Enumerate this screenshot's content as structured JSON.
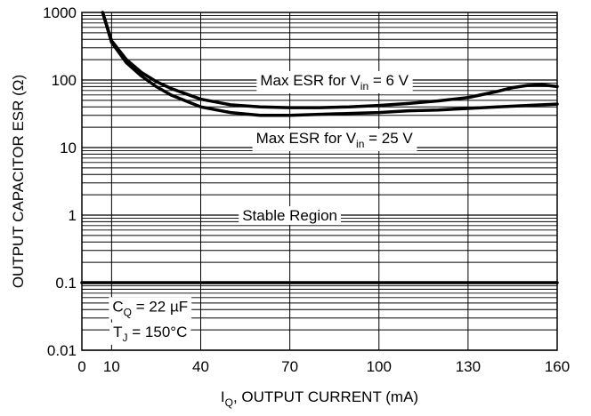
{
  "chart_data": {
    "type": "line",
    "title": "",
    "xlabel": {
      "main": "I",
      "sub": "Q",
      "rest": ", OUTPUT CURRENT (mA)"
    },
    "ylabel": "OUTPUT CAPACITOR ESR (Ω)",
    "x_scale": "linear",
    "y_scale": "log",
    "xlim": [
      0,
      160
    ],
    "ylim": [
      0.01,
      1000
    ],
    "x_ticks": [
      {
        "value": 0,
        "label": "0"
      },
      {
        "value": 10,
        "label": "10"
      },
      {
        "value": 40,
        "label": "40"
      },
      {
        "value": 70,
        "label": "70"
      },
      {
        "value": 100,
        "label": "100"
      },
      {
        "value": 130,
        "label": "130"
      },
      {
        "value": 160,
        "label": "160"
      }
    ],
    "y_ticks": [
      {
        "value": 0.01,
        "label": "0.01"
      },
      {
        "value": 0.1,
        "label": "0.1"
      },
      {
        "value": 1,
        "label": "1"
      },
      {
        "value": 10,
        "label": "10"
      },
      {
        "value": 100,
        "label": "100"
      },
      {
        "value": 1000,
        "label": "1000"
      }
    ],
    "grid": true,
    "series": [
      {
        "x": [
          7,
          10,
          15,
          20,
          25,
          30,
          40,
          50,
          60,
          70,
          80,
          90,
          100,
          110,
          120,
          130,
          140,
          145,
          150,
          155,
          160
        ],
        "y": [
          1000,
          380,
          200,
          130,
          95,
          75,
          52,
          43,
          40,
          39,
          39,
          40,
          42,
          45,
          49,
          55,
          68,
          77,
          83,
          85,
          80
        ]
      },
      {
        "x": [
          7,
          10,
          15,
          20,
          25,
          30,
          40,
          50,
          60,
          70,
          80,
          90,
          100,
          110,
          120,
          130,
          140,
          150,
          160
        ],
        "y": [
          1000,
          360,
          180,
          115,
          80,
          60,
          40,
          33,
          30,
          30,
          31,
          32,
          33,
          35,
          36,
          38,
          40,
          42,
          44
        ]
      },
      {
        "x": [
          0,
          160
        ],
        "y": [
          0.1,
          0.1
        ]
      }
    ],
    "annotations": [
      {
        "id": "v6",
        "x": 85,
        "y": 100,
        "main": "Max ESR for V",
        "sub": "in",
        "rest": " = 6 V"
      },
      {
        "id": "v25",
        "x": 85,
        "y": 14,
        "main": "Max ESR for V",
        "sub": "in",
        "rest": " = 25 V"
      },
      {
        "id": "stable",
        "x": 70,
        "y": 1,
        "main": "Stable Region",
        "sub": "",
        "rest": ""
      },
      {
        "id": "cq",
        "x": 23,
        "y": 0.045,
        "main": "C",
        "sub": "Q",
        "rest": " = 22 µF"
      },
      {
        "id": "tj",
        "x": 23,
        "y": 0.019,
        "main": "T",
        "sub": "J",
        "rest": " = 150°C"
      }
    ]
  }
}
